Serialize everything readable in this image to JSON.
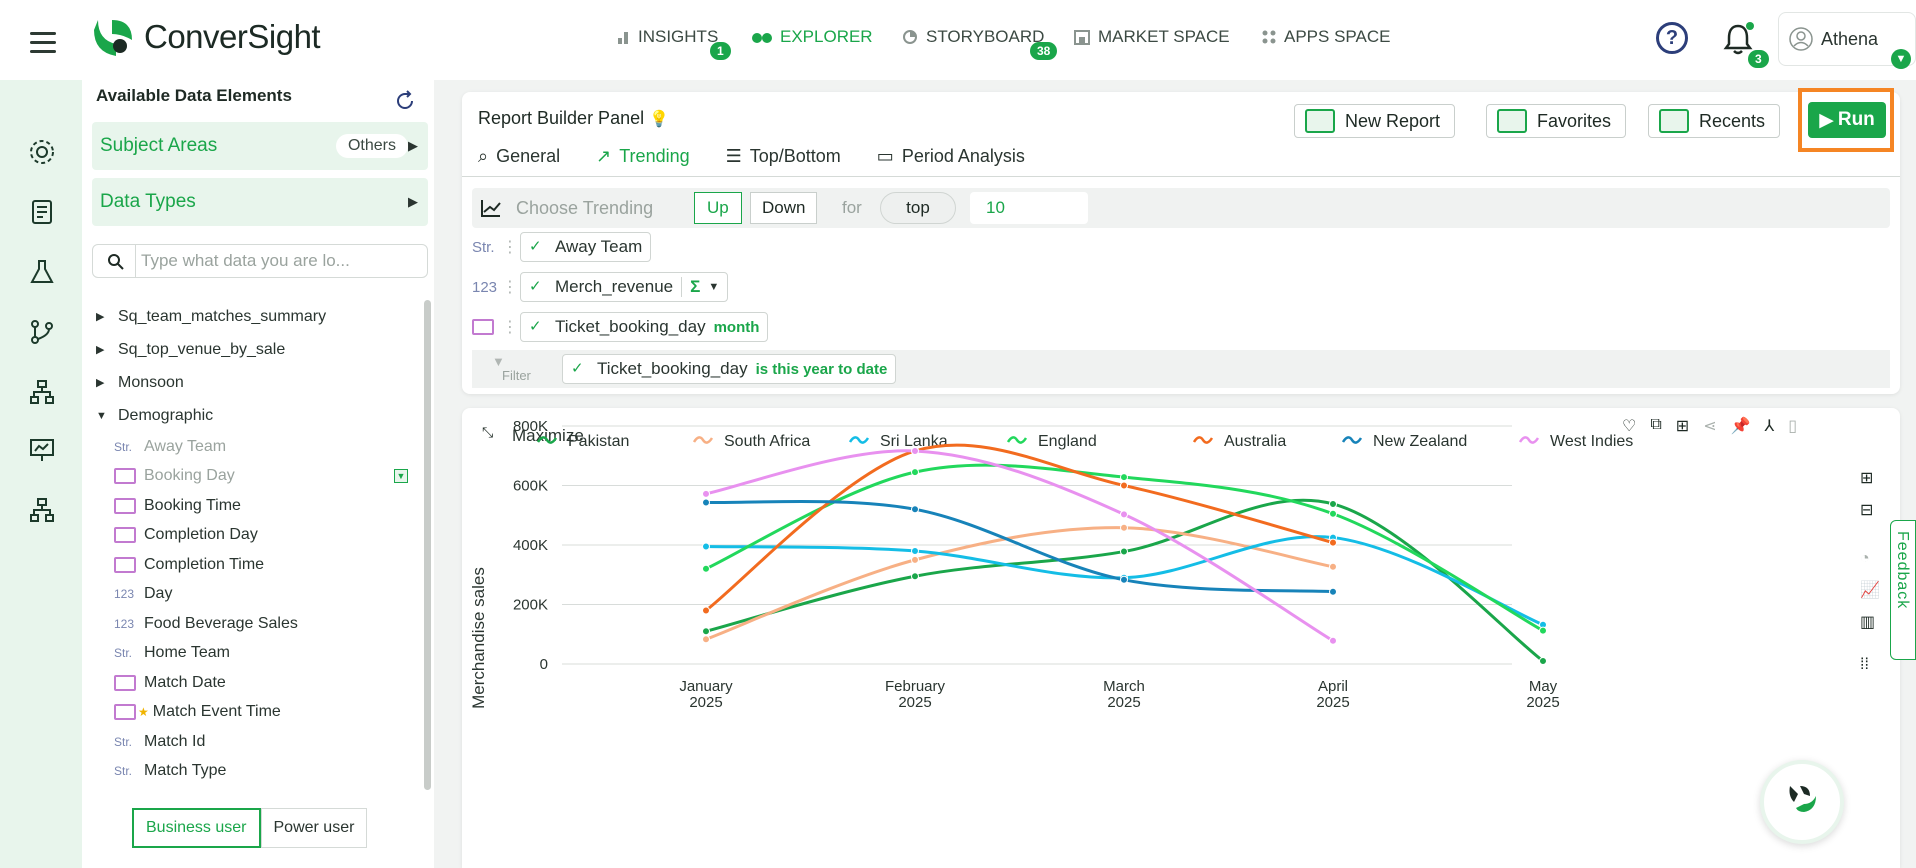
{
  "app": {
    "brand": "ConverSight"
  },
  "topnav": {
    "items": [
      {
        "label": "INSIGHTS",
        "badge": "1"
      },
      {
        "label": "EXPLORER",
        "badge": ""
      },
      {
        "label": "STORYBOARD",
        "badge": "38"
      },
      {
        "label": "MARKET SPACE",
        "badge": ""
      },
      {
        "label": "APPS SPACE",
        "badge": ""
      }
    ],
    "notifications": "3",
    "user": "Athena"
  },
  "datapanel": {
    "title": "Available Data Elements",
    "subject_areas": "Subject Areas",
    "subject_pill": "Others",
    "data_types": "Data Types",
    "search_placeholder": "Type what data you are lo...",
    "tree": [
      "Sq_team_matches_summary",
      "Sq_top_venue_by_sale",
      "Monsoon",
      "Demographic"
    ],
    "leaves": [
      {
        "type": "Str.",
        "label": "Away Team"
      },
      {
        "type": "cal",
        "label": "Booking Day"
      },
      {
        "type": "cal",
        "label": "Booking Time"
      },
      {
        "type": "cal",
        "label": "Completion Day"
      },
      {
        "type": "cal",
        "label": "Completion Time"
      },
      {
        "type": "123",
        "label": "Day"
      },
      {
        "type": "123",
        "label": "Food Beverage Sales"
      },
      {
        "type": "Str.",
        "label": "Home Team"
      },
      {
        "type": "cal",
        "label": "Match Date"
      },
      {
        "type": "cal",
        "label": "Match Event Time"
      },
      {
        "type": "Str.",
        "label": "Match Id"
      },
      {
        "type": "Str.",
        "label": "Match Type"
      }
    ],
    "modes": [
      "Business user",
      "Power user"
    ]
  },
  "report": {
    "title": "Report Builder Panel",
    "buttons": [
      "New Report",
      "Favorites",
      "Recents"
    ],
    "run": "Run",
    "tabs": [
      "General",
      "Trending",
      "Top/Bottom",
      "Period Analysis"
    ],
    "trending": {
      "label": "Choose Trending",
      "up": "Up",
      "down": "Down",
      "for": "for",
      "top": "top",
      "count": "10"
    },
    "fields": [
      {
        "type": "Str.",
        "label": "Away Team",
        "extra": ""
      },
      {
        "type": "123",
        "label": "Merch_revenue",
        "extra": "Σ"
      },
      {
        "type": "cal",
        "label": "Ticket_booking_day",
        "extra": "month"
      }
    ],
    "filter": {
      "label": "Filter",
      "field": "Ticket_booking_day",
      "condition": "is this year to date"
    }
  },
  "chartpanel": {
    "maximize": "Maximize",
    "feedback": "Feedback"
  },
  "chart_data": {
    "type": "line",
    "title": "",
    "xlabel": "",
    "ylabel": "Merchandise sales",
    "ylim": [
      0,
      800000
    ],
    "yticks": [
      "0",
      "200K",
      "400K",
      "600K",
      "800K"
    ],
    "categories": [
      "January 2025",
      "February 2025",
      "March 2025",
      "April 2025",
      "May 2025"
    ],
    "series": [
      {
        "name": "Pakistan",
        "color": "#1aa64a",
        "values": [
          110000,
          295000,
          378000,
          538000,
          10000
        ]
      },
      {
        "name": "South Africa",
        "color": "#f7b085",
        "values": [
          83000,
          350000,
          458000,
          327000,
          null
        ]
      },
      {
        "name": "Sri Lanka",
        "color": "#14bde6",
        "values": [
          395000,
          380000,
          290000,
          425000,
          132000
        ]
      },
      {
        "name": "England",
        "color": "#22d85c",
        "values": [
          320000,
          645000,
          628000,
          505000,
          112000
        ]
      },
      {
        "name": "Australia",
        "color": "#f26b1f",
        "values": [
          180000,
          716000,
          600000,
          408000,
          null
        ]
      },
      {
        "name": "New Zealand",
        "color": "#1783b9",
        "values": [
          543000,
          520000,
          283000,
          243000,
          null
        ]
      },
      {
        "name": "West Indies",
        "color": "#e891ef",
        "values": [
          572000,
          716000,
          503000,
          78000,
          null
        ]
      }
    ]
  }
}
